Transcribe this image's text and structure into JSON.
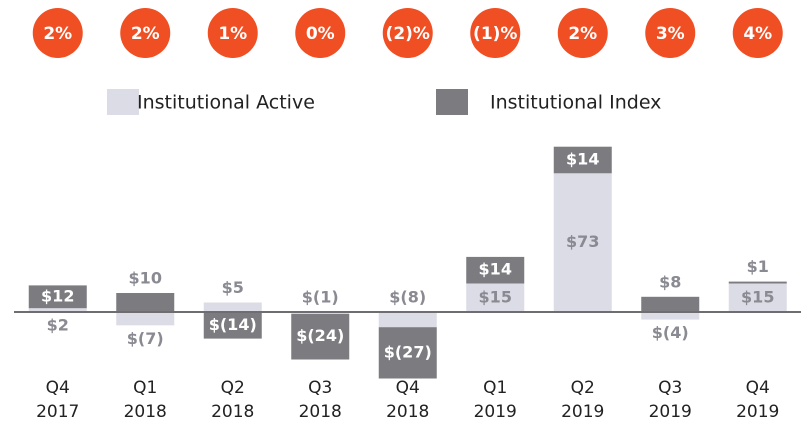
{
  "chart_data": {
    "type": "bar",
    "stacked": true,
    "categories": [
      [
        "Q4",
        "2017"
      ],
      [
        "Q1",
        "2018"
      ],
      [
        "Q2",
        "2018"
      ],
      [
        "Q3",
        "2018"
      ],
      [
        "Q4",
        "2018"
      ],
      [
        "Q1",
        "2019"
      ],
      [
        "Q2",
        "2019"
      ],
      [
        "Q3",
        "2019"
      ],
      [
        "Q4",
        "2019"
      ]
    ],
    "series": [
      {
        "name": "Institutional Active",
        "color": "#dcdce6",
        "label_color": "#8a8a92",
        "values": [
          2,
          -7,
          5,
          -1,
          -8,
          15,
          73,
          -4,
          15
        ],
        "value_labels": [
          "$2",
          "$(7)",
          "$5",
          "$(1)",
          "$(8)",
          "$15",
          "$73",
          "$(4)",
          "$15"
        ]
      },
      {
        "name": "Institutional Index",
        "color": "#7b7b80",
        "label_color": "#ffffff",
        "values": [
          12,
          10,
          -14,
          -24,
          -27,
          14,
          14,
          8,
          1
        ],
        "value_labels": [
          "$12",
          "$10",
          "$(14)",
          "$(24)",
          "$(27)",
          "$14",
          "$14",
          "$8",
          "$1"
        ]
      }
    ],
    "growth": {
      "color": "#f04e23",
      "values": [
        2,
        2,
        1,
        0,
        -2,
        -1,
        2,
        3,
        4
      ],
      "value_labels": [
        "2%",
        "2%",
        "1%",
        "0%",
        "(2)%",
        "(1)%",
        "2%",
        "3%",
        "4%"
      ]
    }
  }
}
